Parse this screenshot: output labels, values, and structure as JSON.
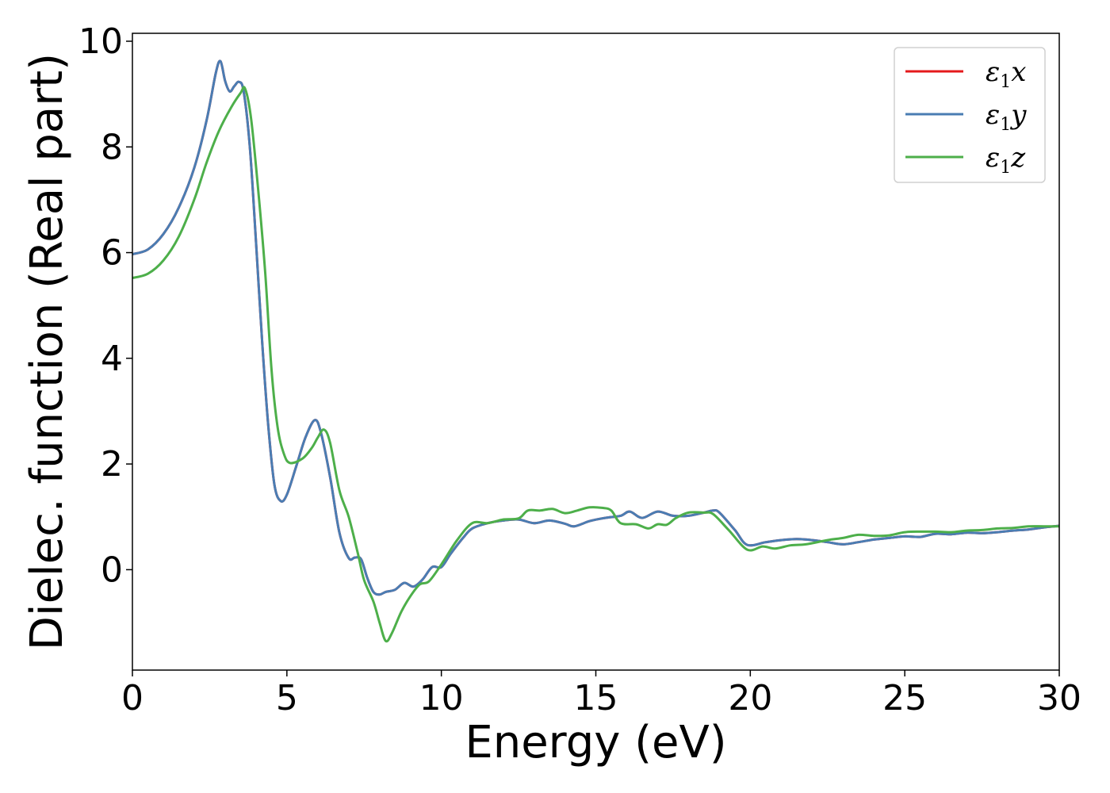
{
  "chart_data": {
    "type": "line",
    "xlabel": "Energy (eV)",
    "ylabel": "Dielec. function (Real part)",
    "xlim": [
      0,
      30
    ],
    "ylim": [
      -1.9,
      10.15
    ],
    "xticks": [
      0,
      5,
      10,
      15,
      20,
      25,
      30
    ],
    "yticks": [
      0,
      2,
      4,
      6,
      8,
      10
    ],
    "grid": false,
    "legend_position": "top-right",
    "series": [
      {
        "name": "ε1x",
        "sym": "ε",
        "sub": "1",
        "comp": "x",
        "color": "#e41a1c",
        "points": [
          [
            0,
            5.97
          ],
          [
            0.5,
            6.06
          ],
          [
            1.0,
            6.35
          ],
          [
            1.5,
            6.85
          ],
          [
            2.0,
            7.6
          ],
          [
            2.4,
            8.5
          ],
          [
            2.7,
            9.4
          ],
          [
            2.85,
            9.62
          ],
          [
            3.0,
            9.25
          ],
          [
            3.15,
            9.05
          ],
          [
            3.3,
            9.15
          ],
          [
            3.45,
            9.23
          ],
          [
            3.6,
            9.05
          ],
          [
            3.8,
            8.0
          ],
          [
            4.0,
            6.2
          ],
          [
            4.2,
            4.3
          ],
          [
            4.4,
            2.7
          ],
          [
            4.6,
            1.6
          ],
          [
            4.8,
            1.3
          ],
          [
            5.0,
            1.42
          ],
          [
            5.3,
            1.95
          ],
          [
            5.6,
            2.5
          ],
          [
            5.9,
            2.83
          ],
          [
            6.1,
            2.6
          ],
          [
            6.4,
            1.75
          ],
          [
            6.7,
            0.7
          ],
          [
            7.0,
            0.22
          ],
          [
            7.2,
            0.23
          ],
          [
            7.4,
            0.2
          ],
          [
            7.6,
            -0.15
          ],
          [
            7.8,
            -0.42
          ],
          [
            8.0,
            -0.47
          ],
          [
            8.2,
            -0.42
          ],
          [
            8.5,
            -0.38
          ],
          [
            8.8,
            -0.25
          ],
          [
            9.1,
            -0.32
          ],
          [
            9.4,
            -0.18
          ],
          [
            9.7,
            0.05
          ],
          [
            10.0,
            0.05
          ],
          [
            10.3,
            0.3
          ],
          [
            10.7,
            0.6
          ],
          [
            11.0,
            0.78
          ],
          [
            11.5,
            0.88
          ],
          [
            12.0,
            0.93
          ],
          [
            12.5,
            0.95
          ],
          [
            13.0,
            0.88
          ],
          [
            13.5,
            0.93
          ],
          [
            14.0,
            0.87
          ],
          [
            14.3,
            0.82
          ],
          [
            14.8,
            0.92
          ],
          [
            15.3,
            0.98
          ],
          [
            15.8,
            1.02
          ],
          [
            16.1,
            1.1
          ],
          [
            16.5,
            0.98
          ],
          [
            17.0,
            1.1
          ],
          [
            17.5,
            1.02
          ],
          [
            18.0,
            1.02
          ],
          [
            18.5,
            1.08
          ],
          [
            18.8,
            1.12
          ],
          [
            19.0,
            1.08
          ],
          [
            19.5,
            0.75
          ],
          [
            19.9,
            0.47
          ],
          [
            20.5,
            0.52
          ],
          [
            21.0,
            0.56
          ],
          [
            21.5,
            0.58
          ],
          [
            22.0,
            0.56
          ],
          [
            22.5,
            0.52
          ],
          [
            23.0,
            0.48
          ],
          [
            23.5,
            0.52
          ],
          [
            24.0,
            0.57
          ],
          [
            24.5,
            0.6
          ],
          [
            25.0,
            0.63
          ],
          [
            25.5,
            0.62
          ],
          [
            26.0,
            0.68
          ],
          [
            26.5,
            0.67
          ],
          [
            27.0,
            0.7
          ],
          [
            27.5,
            0.69
          ],
          [
            28.0,
            0.71
          ],
          [
            28.5,
            0.74
          ],
          [
            29.0,
            0.76
          ],
          [
            29.5,
            0.8
          ],
          [
            30.0,
            0.83
          ]
        ]
      },
      {
        "name": "ε1y",
        "sym": "ε",
        "sub": "1",
        "comp": "y",
        "color": "#4a7db3",
        "points": [
          [
            0,
            5.97
          ],
          [
            0.5,
            6.06
          ],
          [
            1.0,
            6.35
          ],
          [
            1.5,
            6.85
          ],
          [
            2.0,
            7.6
          ],
          [
            2.4,
            8.5
          ],
          [
            2.7,
            9.4
          ],
          [
            2.85,
            9.62
          ],
          [
            3.0,
            9.25
          ],
          [
            3.15,
            9.05
          ],
          [
            3.3,
            9.15
          ],
          [
            3.45,
            9.23
          ],
          [
            3.6,
            9.05
          ],
          [
            3.8,
            8.0
          ],
          [
            4.0,
            6.2
          ],
          [
            4.2,
            4.3
          ],
          [
            4.4,
            2.7
          ],
          [
            4.6,
            1.6
          ],
          [
            4.8,
            1.3
          ],
          [
            5.0,
            1.42
          ],
          [
            5.3,
            1.95
          ],
          [
            5.6,
            2.5
          ],
          [
            5.9,
            2.83
          ],
          [
            6.1,
            2.6
          ],
          [
            6.4,
            1.75
          ],
          [
            6.7,
            0.7
          ],
          [
            7.0,
            0.22
          ],
          [
            7.2,
            0.23
          ],
          [
            7.4,
            0.2
          ],
          [
            7.6,
            -0.15
          ],
          [
            7.8,
            -0.42
          ],
          [
            8.0,
            -0.47
          ],
          [
            8.2,
            -0.42
          ],
          [
            8.5,
            -0.38
          ],
          [
            8.8,
            -0.25
          ],
          [
            9.1,
            -0.32
          ],
          [
            9.4,
            -0.18
          ],
          [
            9.7,
            0.05
          ],
          [
            10.0,
            0.05
          ],
          [
            10.3,
            0.3
          ],
          [
            10.7,
            0.6
          ],
          [
            11.0,
            0.78
          ],
          [
            11.5,
            0.88
          ],
          [
            12.0,
            0.93
          ],
          [
            12.5,
            0.95
          ],
          [
            13.0,
            0.88
          ],
          [
            13.5,
            0.93
          ],
          [
            14.0,
            0.87
          ],
          [
            14.3,
            0.82
          ],
          [
            14.8,
            0.92
          ],
          [
            15.3,
            0.98
          ],
          [
            15.8,
            1.02
          ],
          [
            16.1,
            1.1
          ],
          [
            16.5,
            0.98
          ],
          [
            17.0,
            1.1
          ],
          [
            17.5,
            1.02
          ],
          [
            18.0,
            1.02
          ],
          [
            18.5,
            1.08
          ],
          [
            18.8,
            1.12
          ],
          [
            19.0,
            1.08
          ],
          [
            19.5,
            0.75
          ],
          [
            19.9,
            0.47
          ],
          [
            20.5,
            0.52
          ],
          [
            21.0,
            0.56
          ],
          [
            21.5,
            0.58
          ],
          [
            22.0,
            0.56
          ],
          [
            22.5,
            0.52
          ],
          [
            23.0,
            0.48
          ],
          [
            23.5,
            0.52
          ],
          [
            24.0,
            0.57
          ],
          [
            24.5,
            0.6
          ],
          [
            25.0,
            0.63
          ],
          [
            25.5,
            0.62
          ],
          [
            26.0,
            0.68
          ],
          [
            26.5,
            0.67
          ],
          [
            27.0,
            0.7
          ],
          [
            27.5,
            0.69
          ],
          [
            28.0,
            0.71
          ],
          [
            28.5,
            0.74
          ],
          [
            29.0,
            0.76
          ],
          [
            29.5,
            0.8
          ],
          [
            30.0,
            0.83
          ]
        ]
      },
      {
        "name": "ε1z",
        "sym": "ε",
        "sub": "1",
        "comp": "z",
        "color": "#4daf4a",
        "points": [
          [
            0,
            5.52
          ],
          [
            0.5,
            5.6
          ],
          [
            1.0,
            5.85
          ],
          [
            1.5,
            6.3
          ],
          [
            2.0,
            7.0
          ],
          [
            2.4,
            7.7
          ],
          [
            2.8,
            8.3
          ],
          [
            3.2,
            8.75
          ],
          [
            3.5,
            9.02
          ],
          [
            3.65,
            9.1
          ],
          [
            3.85,
            8.5
          ],
          [
            4.1,
            7.0
          ],
          [
            4.3,
            5.6
          ],
          [
            4.5,
            3.8
          ],
          [
            4.7,
            2.7
          ],
          [
            4.9,
            2.2
          ],
          [
            5.1,
            2.02
          ],
          [
            5.5,
            2.1
          ],
          [
            5.8,
            2.3
          ],
          [
            6.0,
            2.5
          ],
          [
            6.2,
            2.65
          ],
          [
            6.4,
            2.4
          ],
          [
            6.7,
            1.5
          ],
          [
            7.0,
            1.0
          ],
          [
            7.3,
            0.3
          ],
          [
            7.5,
            -0.2
          ],
          [
            7.8,
            -0.6
          ],
          [
            8.0,
            -1.0
          ],
          [
            8.2,
            -1.35
          ],
          [
            8.4,
            -1.2
          ],
          [
            8.7,
            -0.8
          ],
          [
            9.0,
            -0.5
          ],
          [
            9.3,
            -0.28
          ],
          [
            9.6,
            -0.22
          ],
          [
            10.0,
            0.1
          ],
          [
            10.5,
            0.55
          ],
          [
            11.0,
            0.88
          ],
          [
            11.5,
            0.88
          ],
          [
            12.0,
            0.95
          ],
          [
            12.5,
            0.97
          ],
          [
            12.8,
            1.12
          ],
          [
            13.2,
            1.12
          ],
          [
            13.6,
            1.15
          ],
          [
            14.0,
            1.07
          ],
          [
            14.4,
            1.12
          ],
          [
            14.8,
            1.18
          ],
          [
            15.2,
            1.17
          ],
          [
            15.5,
            1.12
          ],
          [
            15.8,
            0.88
          ],
          [
            16.3,
            0.86
          ],
          [
            16.7,
            0.78
          ],
          [
            17.0,
            0.86
          ],
          [
            17.3,
            0.85
          ],
          [
            17.6,
            0.98
          ],
          [
            18.0,
            1.08
          ],
          [
            18.5,
            1.08
          ],
          [
            18.8,
            1.05
          ],
          [
            19.3,
            0.75
          ],
          [
            19.9,
            0.38
          ],
          [
            20.4,
            0.44
          ],
          [
            20.8,
            0.4
          ],
          [
            21.3,
            0.46
          ],
          [
            21.8,
            0.48
          ],
          [
            22.5,
            0.56
          ],
          [
            23.0,
            0.6
          ],
          [
            23.5,
            0.66
          ],
          [
            24.0,
            0.64
          ],
          [
            24.5,
            0.65
          ],
          [
            25.0,
            0.71
          ],
          [
            25.5,
            0.72
          ],
          [
            26.0,
            0.72
          ],
          [
            26.5,
            0.71
          ],
          [
            27.0,
            0.74
          ],
          [
            27.5,
            0.75
          ],
          [
            28.0,
            0.78
          ],
          [
            28.5,
            0.79
          ],
          [
            29.0,
            0.82
          ],
          [
            29.5,
            0.82
          ],
          [
            30.0,
            0.82
          ]
        ]
      }
    ]
  }
}
